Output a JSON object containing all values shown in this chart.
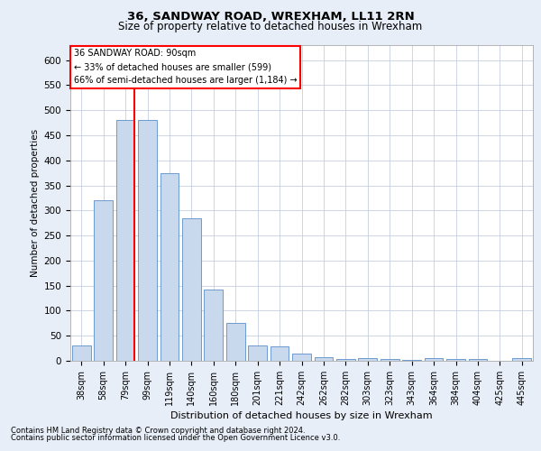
{
  "title1": "36, SANDWAY ROAD, WREXHAM, LL11 2RN",
  "title2": "Size of property relative to detached houses in Wrexham",
  "xlabel": "Distribution of detached houses by size in Wrexham",
  "ylabel": "Number of detached properties",
  "categories": [
    "38sqm",
    "58sqm",
    "79sqm",
    "99sqm",
    "119sqm",
    "140sqm",
    "160sqm",
    "180sqm",
    "201sqm",
    "221sqm",
    "242sqm",
    "262sqm",
    "282sqm",
    "303sqm",
    "323sqm",
    "343sqm",
    "364sqm",
    "384sqm",
    "404sqm",
    "425sqm",
    "445sqm"
  ],
  "values": [
    30,
    320,
    480,
    480,
    375,
    285,
    143,
    75,
    30,
    28,
    15,
    8,
    3,
    5,
    3,
    2,
    5,
    3,
    3,
    0,
    5
  ],
  "bar_color": "#c8d9ee",
  "bar_edge_color": "#5b8dc8",
  "property_label": "36 SANDWAY ROAD: 90sqm",
  "annotation_line1": "← 33% of detached houses are smaller (599)",
  "annotation_line2": "66% of semi-detached houses are larger (1,184) →",
  "ylim": [
    0,
    630
  ],
  "yticks": [
    0,
    50,
    100,
    150,
    200,
    250,
    300,
    350,
    400,
    450,
    500,
    550,
    600
  ],
  "footnote1": "Contains HM Land Registry data © Crown copyright and database right 2024.",
  "footnote2": "Contains public sector information licensed under the Open Government Licence v3.0.",
  "background_color": "#e8eef8",
  "plot_bg_color": "#ffffff",
  "grid_color": "#c5cfe0"
}
